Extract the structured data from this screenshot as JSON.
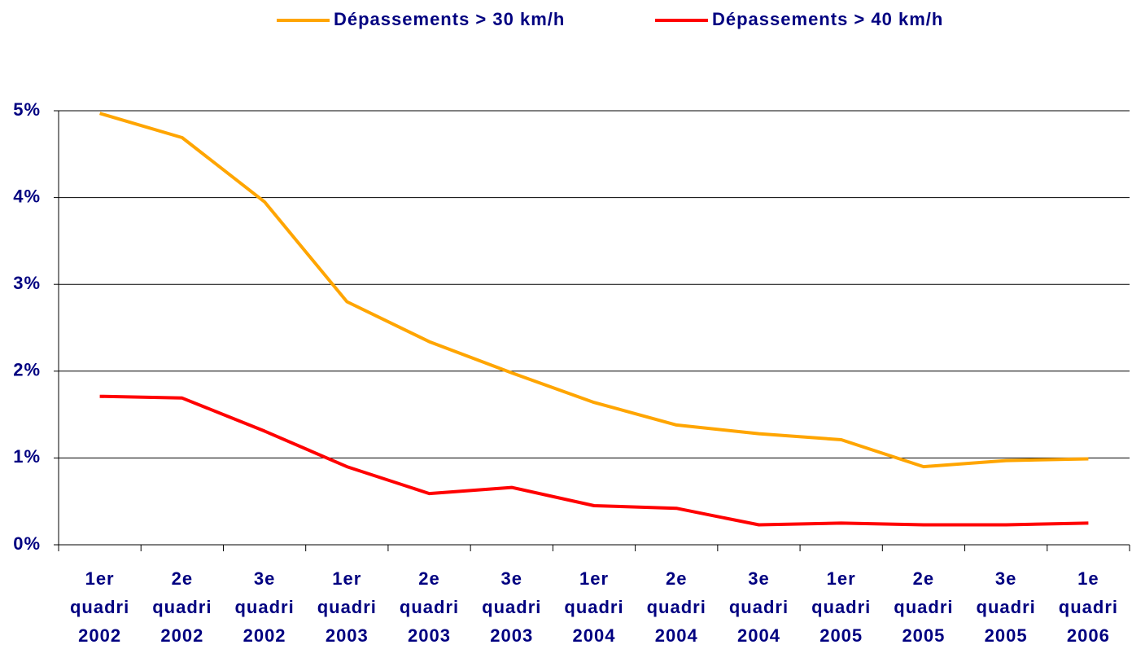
{
  "chart_data": {
    "type": "line",
    "categories": [
      "1er quadri 2002",
      "2e quadri 2002",
      "3e quadri 2002",
      "1er quadri 2003",
      "2e quadri 2003",
      "3e quadri 2003",
      "1er quadri 2004",
      "2e quadri 2004",
      "3e quadri 2004",
      "1er quadri 2005",
      "2e quadri 2005",
      "3e quadri 2005",
      "1e quadri 2006"
    ],
    "series": [
      {
        "name": "Dépassements > 30 km/h",
        "color": "#ffa500",
        "values": [
          4.97,
          4.69,
          3.95,
          2.8,
          2.34,
          1.98,
          1.64,
          1.38,
          1.28,
          1.21,
          0.9,
          0.97,
          0.99
        ]
      },
      {
        "name": "Dépassements > 40 km/h",
        "color": "#ff0000",
        "values": [
          1.71,
          1.69,
          1.31,
          0.9,
          0.59,
          0.66,
          0.45,
          0.42,
          0.23,
          0.25,
          0.23,
          0.23,
          0.25
        ]
      }
    ],
    "ylim": [
      0,
      5
    ],
    "yticks": [
      {
        "value": 0,
        "label": "0%"
      },
      {
        "value": 1,
        "label": "1%"
      },
      {
        "value": 2,
        "label": "2%"
      },
      {
        "value": 3,
        "label": "3%"
      },
      {
        "value": 4,
        "label": "4%"
      },
      {
        "value": 5,
        "label": "5%"
      }
    ],
    "grid": true,
    "legend": "top"
  }
}
